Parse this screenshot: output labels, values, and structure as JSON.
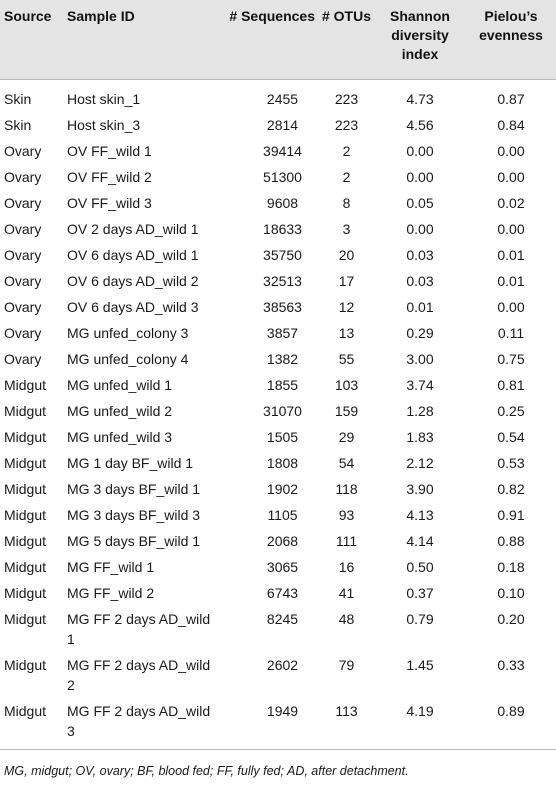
{
  "header": {
    "source": "Source",
    "sample_id": "Sample ID",
    "sequences": "# Sequences",
    "otus": "# OTUs",
    "shannon": "Shannon diversity index",
    "pielou": "Pielou’s evenness"
  },
  "rows": [
    {
      "source": "Skin",
      "sample_id": "Host skin_1",
      "sequences": "2455",
      "otus": "223",
      "shannon": "4.73",
      "pielou": "0.87"
    },
    {
      "source": "Skin",
      "sample_id": "Host skin_3",
      "sequences": "2814",
      "otus": "223",
      "shannon": "4.56",
      "pielou": "0.84"
    },
    {
      "source": "Ovary",
      "sample_id": "OV FF_wild 1",
      "sequences": "39414",
      "otus": "2",
      "shannon": "0.00",
      "pielou": "0.00"
    },
    {
      "source": "Ovary",
      "sample_id": "OV FF_wild 2",
      "sequences": "51300",
      "otus": "2",
      "shannon": "0.00",
      "pielou": "0.00"
    },
    {
      "source": "Ovary",
      "sample_id": "OV FF_wild 3",
      "sequences": "9608",
      "otus": "8",
      "shannon": "0.05",
      "pielou": "0.02"
    },
    {
      "source": "Ovary",
      "sample_id": "OV 2 days AD_wild 1",
      "sequences": "18633",
      "otus": "3",
      "shannon": "0.00",
      "pielou": "0.00"
    },
    {
      "source": "Ovary",
      "sample_id": "OV 6 days AD_wild 1",
      "sequences": "35750",
      "otus": "20",
      "shannon": "0.03",
      "pielou": "0.01"
    },
    {
      "source": "Ovary",
      "sample_id": "OV 6 days AD_wild 2",
      "sequences": "32513",
      "otus": "17",
      "shannon": "0.03",
      "pielou": "0.01"
    },
    {
      "source": "Ovary",
      "sample_id": "OV 6 days AD_wild 3",
      "sequences": "38563",
      "otus": "12",
      "shannon": "0.01",
      "pielou": "0.00"
    },
    {
      "source": "Ovary",
      "sample_id": "MG unfed_colony 3",
      "sequences": "3857",
      "otus": "13",
      "shannon": "0.29",
      "pielou": "0.11"
    },
    {
      "source": "Ovary",
      "sample_id": "MG unfed_colony 4",
      "sequences": "1382",
      "otus": "55",
      "shannon": "3.00",
      "pielou": "0.75"
    },
    {
      "source": "Midgut",
      "sample_id": "MG unfed_wild 1",
      "sequences": "1855",
      "otus": "103",
      "shannon": "3.74",
      "pielou": "0.81"
    },
    {
      "source": "Midgut",
      "sample_id": "MG unfed_wild 2",
      "sequences": "31070",
      "otus": "159",
      "shannon": "1.28",
      "pielou": "0.25"
    },
    {
      "source": "Midgut",
      "sample_id": "MG unfed_wild 3",
      "sequences": "1505",
      "otus": "29",
      "shannon": "1.83",
      "pielou": "0.54"
    },
    {
      "source": "Midgut",
      "sample_id": "MG 1 day BF_wild 1",
      "sequences": "1808",
      "otus": "54",
      "shannon": "2.12",
      "pielou": "0.53"
    },
    {
      "source": "Midgut",
      "sample_id": "MG 3 days BF_wild 1",
      "sequences": "1902",
      "otus": "118",
      "shannon": "3.90",
      "pielou": "0.82"
    },
    {
      "source": "Midgut",
      "sample_id": "MG 3 days BF_wild 3",
      "sequences": "1105",
      "otus": "93",
      "shannon": "4.13",
      "pielou": "0.91"
    },
    {
      "source": "Midgut",
      "sample_id": "MG 5 days BF_wild 1",
      "sequences": "2068",
      "otus": "111",
      "shannon": "4.14",
      "pielou": "0.88"
    },
    {
      "source": "Midgut",
      "sample_id": "MG FF_wild 1",
      "sequences": "3065",
      "otus": "16",
      "shannon": "0.50",
      "pielou": "0.18"
    },
    {
      "source": "Midgut",
      "sample_id": "MG FF_wild 2",
      "sequences": "6743",
      "otus": "41",
      "shannon": "0.37",
      "pielou": "0.10"
    },
    {
      "source": "Midgut",
      "sample_id": "MG FF 2 days AD_wild 1",
      "sequences": "8245",
      "otus": "48",
      "shannon": "0.79",
      "pielou": "0.20"
    },
    {
      "source": "Midgut",
      "sample_id": "MG FF 2 days AD_wild 2",
      "sequences": "2602",
      "otus": "79",
      "shannon": "1.45",
      "pielou": "0.33"
    },
    {
      "source": "Midgut",
      "sample_id": "MG FF 2 days AD_wild 3",
      "sequences": "1949",
      "otus": "113",
      "shannon": "4.19",
      "pielou": "0.89"
    }
  ],
  "footnote": "MG, midgut; OV, ovary; BF, blood fed; FF, fully fed; AD, after detachment."
}
